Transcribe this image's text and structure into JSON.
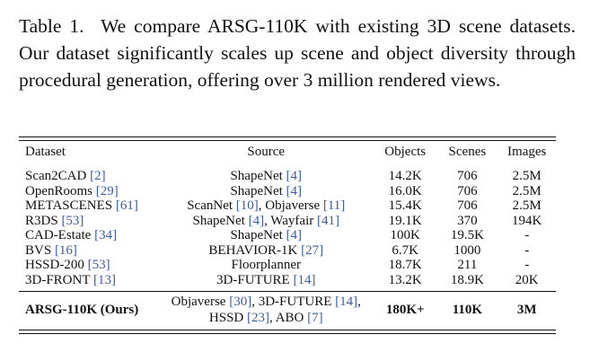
{
  "caption": {
    "label": "Table 1.",
    "text": "We compare ARSG-110K with existing 3D scene datasets. Our dataset significantly scales up scene and object diversity through procedural generation, offering over 3 million rendered views."
  },
  "table": {
    "headers": [
      "Dataset",
      "Source",
      "Objects",
      "Scenes",
      "Images"
    ],
    "rows": [
      {
        "dataset": "Scan2CAD",
        "dataset_cite": "[2]",
        "source": [
          {
            "t": "ShapeNet "
          },
          {
            "c": "[4]"
          }
        ],
        "objects": "14.2K",
        "scenes": "706",
        "images": "2.5M"
      },
      {
        "dataset": "OpenRooms",
        "dataset_cite": "[29]",
        "source": [
          {
            "t": "ShapeNet "
          },
          {
            "c": "[4]"
          }
        ],
        "objects": "16.0K",
        "scenes": "706",
        "images": "2.5M"
      },
      {
        "dataset": "METASCENES",
        "dataset_cite": "[61]",
        "source": [
          {
            "t": "ScanNet "
          },
          {
            "c": "[10]"
          },
          {
            "t": ", Objaverse "
          },
          {
            "c": "[11]"
          }
        ],
        "objects": "15.4K",
        "scenes": "706",
        "images": "2.5M"
      },
      {
        "dataset": "R3DS",
        "dataset_cite": "[53]",
        "source": [
          {
            "t": "ShapeNet "
          },
          {
            "c": "[4]"
          },
          {
            "t": ", Wayfair "
          },
          {
            "c": "[41]"
          }
        ],
        "objects": "19.1K",
        "scenes": "370",
        "images": "194K"
      },
      {
        "dataset": "CAD-Estate",
        "dataset_cite": "[34]",
        "source": [
          {
            "t": "ShapeNet "
          },
          {
            "c": "[4]"
          }
        ],
        "objects": "100K",
        "scenes": "19.5K",
        "images": "-"
      },
      {
        "dataset": "BVS",
        "dataset_cite": "[16]",
        "source": [
          {
            "t": "BEHAVIOR-1K "
          },
          {
            "c": "[27]"
          }
        ],
        "objects": "6.7K",
        "scenes": "1000",
        "images": "-"
      },
      {
        "dataset": "HSSD-200",
        "dataset_cite": "[53]",
        "source": [
          {
            "t": "Floorplanner"
          }
        ],
        "objects": "18.7K",
        "scenes": "211",
        "images": "-"
      },
      {
        "dataset": "3D-FRONT",
        "dataset_cite": "[13]",
        "source": [
          {
            "t": "3D-FUTURE "
          },
          {
            "c": "[14]"
          }
        ],
        "objects": "13.2K",
        "scenes": "18.9K",
        "images": "20K"
      }
    ],
    "ours": {
      "dataset": "ARSG-110K (Ours)",
      "source_line1": [
        {
          "t": "Objaverse "
        },
        {
          "c": "[30]"
        },
        {
          "t": ", 3D-FUTURE "
        },
        {
          "c": "[14]"
        },
        {
          "t": ","
        }
      ],
      "source_line2": [
        {
          "t": "HSSD "
        },
        {
          "c": "[23]"
        },
        {
          "t": ", ABO "
        },
        {
          "c": "[7]"
        }
      ],
      "objects": "180K+",
      "scenes": "110K",
      "images": "3M"
    }
  }
}
